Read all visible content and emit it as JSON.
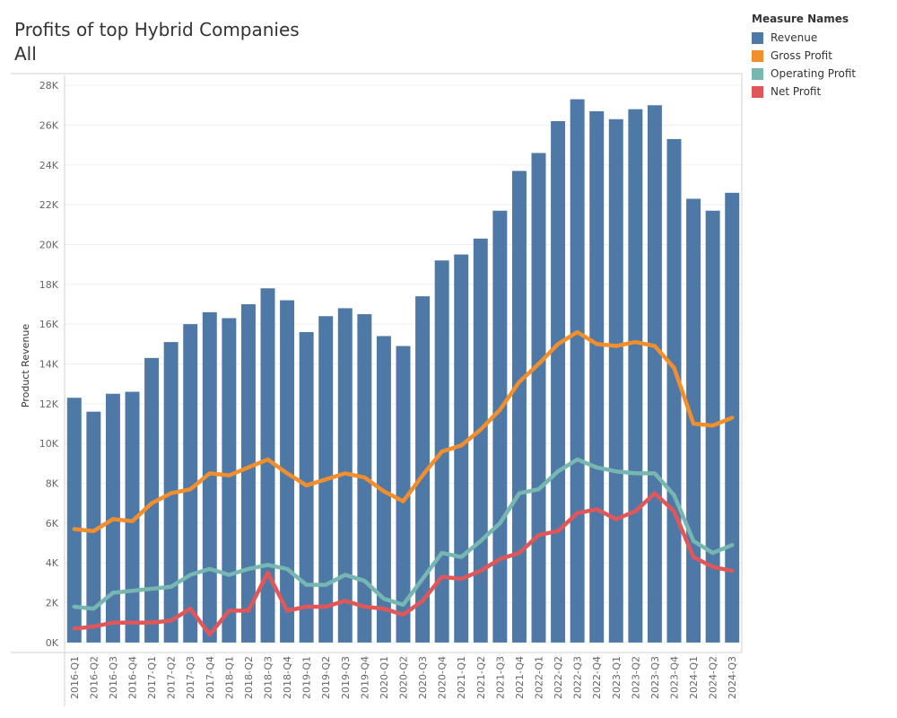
{
  "header": {
    "title": "Profits of top Hybrid Companies",
    "subtitle": "All"
  },
  "legend": {
    "title": "Measure Names",
    "items": [
      {
        "label": "Revenue",
        "color": "#4e79a7"
      },
      {
        "label": "Gross Profit",
        "color": "#f28e2b"
      },
      {
        "label": "Operating Profit",
        "color": "#76b7b2"
      },
      {
        "label": "Net Profit",
        "color": "#e15759"
      }
    ]
  },
  "chart_data": {
    "type": "bar",
    "ylabel": "Product Revenue",
    "ylim": [
      -500,
      28500
    ],
    "yticks": [
      0,
      2000,
      4000,
      6000,
      8000,
      10000,
      12000,
      14000,
      16000,
      18000,
      20000,
      22000,
      24000,
      26000,
      28000
    ],
    "ytick_labels": [
      "0K",
      "2K",
      "4K",
      "6K",
      "8K",
      "10K",
      "12K",
      "14K",
      "16K",
      "18K",
      "20K",
      "22K",
      "24K",
      "26K",
      "28K"
    ],
    "categories": [
      "2016-Q1",
      "2016-Q2",
      "2016-Q3",
      "2016-Q4",
      "2017-Q1",
      "2017-Q2",
      "2017-Q3",
      "2017-Q4",
      "2018-Q1",
      "2018-Q2",
      "2018-Q3",
      "2018-Q4",
      "2019-Q1",
      "2019-Q2",
      "2019-Q3",
      "2019-Q4",
      "2020-Q1",
      "2020-Q2",
      "2020-Q3",
      "2020-Q4",
      "2021-Q1",
      "2021-Q2",
      "2021-Q3",
      "2021-Q4",
      "2022-Q1",
      "2022-Q2",
      "2022-Q3",
      "2022-Q4",
      "2023-Q1",
      "2023-Q2",
      "2023-Q3",
      "2023-Q4",
      "2024-Q1",
      "2024-Q2",
      "2024-Q3"
    ],
    "series": [
      {
        "name": "Revenue",
        "type": "bar",
        "color": "#4e79a7",
        "values": [
          12300,
          11600,
          12500,
          12600,
          14300,
          15100,
          16000,
          16600,
          16300,
          17000,
          17800,
          17200,
          15600,
          16400,
          16800,
          16500,
          15400,
          14900,
          17400,
          19200,
          19500,
          20300,
          21700,
          23700,
          24600,
          26200,
          27300,
          26700,
          26300,
          26800,
          27000,
          25300,
          22300,
          21700,
          22600
        ]
      },
      {
        "name": "Gross Profit",
        "type": "line",
        "color": "#f28e2b",
        "values": [
          5700,
          5600,
          6200,
          6100,
          7000,
          7500,
          7700,
          8500,
          8400,
          8800,
          9200,
          8500,
          7900,
          8200,
          8500,
          8300,
          7600,
          7100,
          8400,
          9600,
          9900,
          10700,
          11700,
          13100,
          14000,
          15000,
          15600,
          15000,
          14900,
          15100,
          14900,
          13800,
          11000,
          10900,
          11300
        ]
      },
      {
        "name": "Operating Profit",
        "type": "line",
        "color": "#76b7b2",
        "values": [
          1800,
          1700,
          2500,
          2600,
          2700,
          2800,
          3400,
          3700,
          3400,
          3700,
          3900,
          3700,
          2900,
          2900,
          3400,
          3100,
          2200,
          1900,
          3200,
          4500,
          4300,
          5100,
          6000,
          7500,
          7700,
          8600,
          9200,
          8800,
          8600,
          8500,
          8500,
          7400,
          5100,
          4500,
          4900
        ]
      },
      {
        "name": "Net Profit",
        "type": "line",
        "color": "#e15759",
        "values": [
          700,
          800,
          1000,
          1000,
          1000,
          1100,
          1700,
          400,
          1600,
          1600,
          3500,
          1600,
          1800,
          1800,
          2100,
          1800,
          1700,
          1400,
          2100,
          3300,
          3200,
          3600,
          4200,
          4500,
          5400,
          5600,
          6500,
          6700,
          6200,
          6600,
          7500,
          6600,
          4300,
          3800,
          3600
        ]
      }
    ]
  }
}
